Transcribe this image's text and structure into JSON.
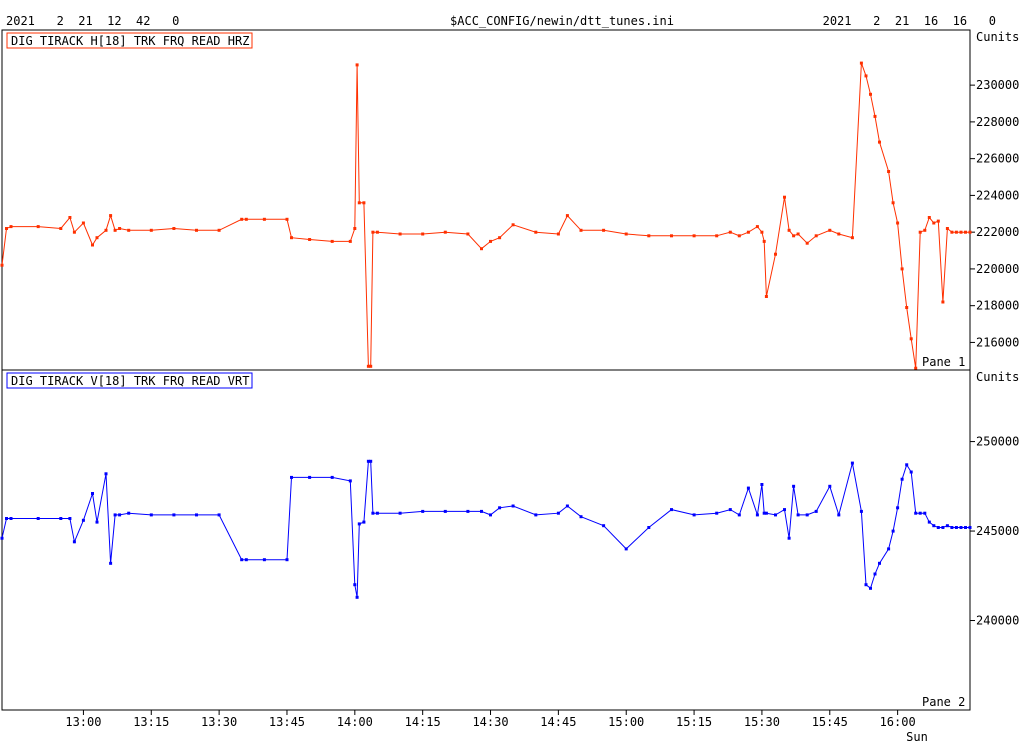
{
  "header": {
    "left_stamp": "2021   2  21  12  42   0",
    "file_path": "$ACC_CONFIG/newin/dtt_tunes.ini",
    "right_stamp": "2021   2  21  16  16   0"
  },
  "colors": {
    "pane1_trace": "#ff3000",
    "pane2_trace": "#0000ff",
    "frame": "#000000",
    "background": "#ffffff"
  },
  "chart_data": [
    {
      "type": "line",
      "pane_label": "Pane 1",
      "legend": "DIG TIRACK H[18] TRK FRQ READ HRZ",
      "unit": "Cunits",
      "x_ticks": [
        "13:00",
        "13:15",
        "13:30",
        "13:45",
        "14:00",
        "14:15",
        "14:30",
        "14:45",
        "15:00",
        "15:15",
        "15:30",
        "15:45",
        "16:00"
      ],
      "x_day_label": "Sun",
      "ylim": [
        214500,
        233000
      ],
      "y_ticks": [
        216000,
        218000,
        220000,
        222000,
        224000,
        226000,
        228000,
        230000
      ],
      "series": [
        {
          "x": [
            "12:42",
            "12:43",
            "12:44",
            "12:50",
            "12:55",
            "12:57",
            "12:58",
            "13:00",
            "13:02",
            "13:03",
            "13:05",
            "13:06",
            "13:07",
            "13:08",
            "13:10",
            "13:15",
            "13:20",
            "13:25",
            "13:30",
            "13:35",
            "13:36",
            "13:40",
            "13:45",
            "13:46",
            "13:50",
            "13:55",
            "13:59",
            "14:00",
            "14:00:30",
            "14:01",
            "14:02",
            "14:03",
            "14:03:30",
            "14:04",
            "14:05",
            "14:10",
            "14:15",
            "14:20",
            "14:25",
            "14:28",
            "14:30",
            "14:32",
            "14:35",
            "14:40",
            "14:45",
            "14:47",
            "14:50",
            "14:55",
            "15:00",
            "15:05",
            "15:10",
            "15:15",
            "15:20",
            "15:23",
            "15:25",
            "15:27",
            "15:29",
            "15:30",
            "15:30:30",
            "15:31",
            "15:33",
            "15:35",
            "15:36",
            "15:37",
            "15:38",
            "15:40",
            "15:42",
            "15:45",
            "15:47",
            "15:50",
            "15:52",
            "15:53",
            "15:54",
            "15:55",
            "15:56",
            "15:58",
            "15:59",
            "16:00",
            "16:01",
            "16:02",
            "16:03",
            "16:04",
            "16:05",
            "16:06",
            "16:07",
            "16:08",
            "16:09",
            "16:10",
            "16:11",
            "16:12",
            "16:13",
            "16:14",
            "16:15",
            "16:16"
          ],
          "y": [
            220200,
            222200,
            222300,
            222300,
            222200,
            222800,
            222000,
            222500,
            221300,
            221700,
            222100,
            222900,
            222100,
            222200,
            222100,
            222100,
            222200,
            222100,
            222100,
            222700,
            222700,
            222700,
            222700,
            221700,
            221600,
            221500,
            221500,
            222200,
            231100,
            223600,
            223600,
            214700,
            214700,
            222000,
            222000,
            221900,
            221900,
            222000,
            221900,
            221100,
            221500,
            221700,
            222400,
            222000,
            221900,
            222900,
            222100,
            222100,
            221900,
            221800,
            221800,
            221800,
            221800,
            222000,
            221800,
            222000,
            222300,
            222000,
            221500,
            218500,
            220800,
            223900,
            222100,
            221800,
            221900,
            221400,
            221800,
            222100,
            221900,
            221700,
            231200,
            230500,
            229500,
            228300,
            226900,
            225300,
            223600,
            222500,
            220000,
            217900,
            216200,
            214600,
            222000,
            222100,
            222800,
            222500,
            222600,
            218200,
            222200,
            222000,
            222000,
            222000,
            222000,
            222000
          ]
        }
      ]
    },
    {
      "type": "line",
      "pane_label": "Pane 2",
      "legend": "DIG TIRACK V[18] TRK FRQ READ VRT",
      "unit": "Cunits",
      "x_ticks": [
        "13:00",
        "13:15",
        "13:30",
        "13:45",
        "14:00",
        "14:15",
        "14:30",
        "14:45",
        "15:00",
        "15:15",
        "15:30",
        "15:45",
        "16:00"
      ],
      "x_day_label": "Sun",
      "ylim": [
        235000,
        254000
      ],
      "y_ticks": [
        240000,
        245000,
        250000
      ],
      "series": [
        {
          "x": [
            "12:42",
            "12:43",
            "12:44",
            "12:50",
            "12:55",
            "12:57",
            "12:58",
            "13:00",
            "13:02",
            "13:03",
            "13:05",
            "13:06",
            "13:07",
            "13:08",
            "13:10",
            "13:15",
            "13:20",
            "13:25",
            "13:30",
            "13:35",
            "13:36",
            "13:40",
            "13:45",
            "13:46",
            "13:50",
            "13:55",
            "13:59",
            "14:00",
            "14:00:30",
            "14:01",
            "14:02",
            "14:03",
            "14:03:30",
            "14:04",
            "14:05",
            "14:10",
            "14:15",
            "14:20",
            "14:25",
            "14:28",
            "14:30",
            "14:32",
            "14:35",
            "14:40",
            "14:45",
            "14:47",
            "14:50",
            "14:55",
            "15:00",
            "15:05",
            "15:10",
            "15:15",
            "15:20",
            "15:23",
            "15:25",
            "15:27",
            "15:29",
            "15:30",
            "15:30:30",
            "15:31",
            "15:33",
            "15:35",
            "15:36",
            "15:37",
            "15:38",
            "15:40",
            "15:42",
            "15:45",
            "15:47",
            "15:50",
            "15:52",
            "15:53",
            "15:54",
            "15:55",
            "15:56",
            "15:58",
            "15:59",
            "16:00",
            "16:01",
            "16:02",
            "16:03",
            "16:04",
            "16:05",
            "16:06",
            "16:07",
            "16:08",
            "16:09",
            "16:10",
            "16:11",
            "16:12",
            "16:13",
            "16:14",
            "16:15",
            "16:16"
          ],
          "y": [
            244600,
            245700,
            245700,
            245700,
            245700,
            245700,
            244400,
            245600,
            247100,
            245500,
            248200,
            243200,
            245900,
            245900,
            246000,
            245900,
            245900,
            245900,
            245900,
            243400,
            243400,
            243400,
            243400,
            248000,
            248000,
            248000,
            247800,
            242000,
            241300,
            245400,
            245500,
            248900,
            248900,
            246000,
            246000,
            246000,
            246100,
            246100,
            246100,
            246100,
            245900,
            246300,
            246400,
            245900,
            246000,
            246400,
            245800,
            245300,
            244000,
            245200,
            246200,
            245900,
            246000,
            246200,
            245900,
            247400,
            245900,
            247600,
            246000,
            246000,
            245900,
            246200,
            244600,
            247500,
            245900,
            245900,
            246100,
            247500,
            245900,
            248800,
            246100,
            242000,
            241800,
            242600,
            243200,
            244000,
            245000,
            246300,
            247900,
            248700,
            248300,
            246000,
            246000,
            246000,
            245500,
            245300,
            245200,
            245200,
            245300,
            245200,
            245200,
            245200,
            245200,
            245200
          ]
        }
      ]
    }
  ]
}
